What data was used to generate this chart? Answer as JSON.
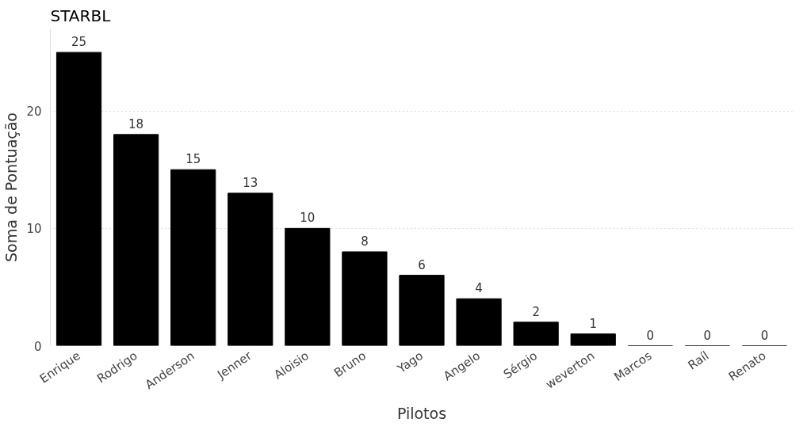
{
  "chart_data": {
    "type": "bar",
    "title": "STARBL",
    "xlabel": "Pilotos",
    "ylabel": "Soma de Pontuação",
    "categories": [
      "Enrique",
      "Rodrigo",
      "Anderson",
      "Jenner",
      "Aloisio",
      "Bruno",
      "Yago",
      "Angelo",
      "Sérgio",
      "weverton",
      "Marcos",
      "Raíl",
      "Renato"
    ],
    "values": [
      25,
      18,
      15,
      13,
      10,
      8,
      6,
      4,
      2,
      1,
      0,
      0,
      0
    ],
    "color": "#000000",
    "ylim": [
      0,
      27
    ],
    "yticks": [
      0,
      10,
      20
    ],
    "grid": "y",
    "data_labels": true
  }
}
